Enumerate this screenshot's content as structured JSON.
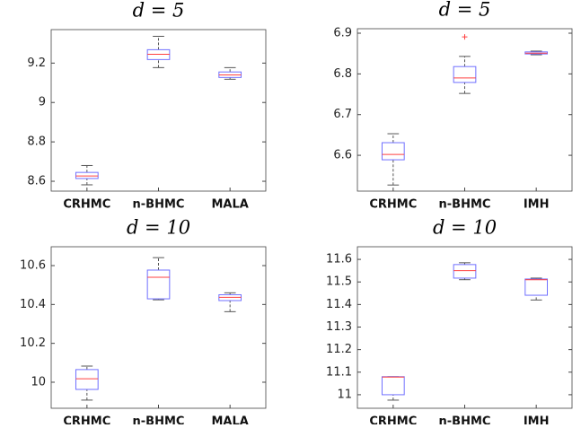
{
  "chart_data": [
    {
      "type": "box",
      "title": "d = 5",
      "categories": [
        "CRHMC",
        "n-BHMC",
        "MALA"
      ],
      "min": [
        8.582,
        9.177,
        9.118
      ],
      "q1": [
        8.614,
        9.218,
        9.127
      ],
      "median": [
        8.627,
        9.245,
        9.14
      ],
      "q3": [
        8.645,
        9.268,
        9.155
      ],
      "max": [
        8.68,
        9.336,
        9.177
      ],
      "outliers": [
        [],
        [],
        []
      ],
      "ylim": [
        8.55,
        9.37
      ],
      "yticks": [
        8.6,
        8.8,
        9,
        9.2
      ],
      "box_color": "#7070ff",
      "median_color": "#ff4040",
      "whisker_color": "#555555"
    },
    {
      "type": "box",
      "title": "d = 5",
      "categories": [
        "CRHMC",
        "n-BHMC",
        "IMH"
      ],
      "min": [
        6.527,
        6.752,
        6.847
      ],
      "q1": [
        6.589,
        6.779,
        6.849
      ],
      "median": [
        6.602,
        6.79,
        6.851
      ],
      "q3": [
        6.631,
        6.818,
        6.854
      ],
      "max": [
        6.653,
        6.843,
        6.856
      ],
      "outliers": [
        [],
        [
          6.891
        ],
        []
      ],
      "ylim": [
        6.512,
        6.911
      ],
      "yticks": [
        6.6,
        6.7,
        6.8,
        6.9
      ],
      "box_color": "#7070ff",
      "median_color": "#ff4040",
      "whisker_color": "#555555"
    },
    {
      "type": "box",
      "title": "d = 10",
      "categories": [
        "CRHMC",
        "n-BHMC",
        "MALA"
      ],
      "min": [
        9.908,
        10.424,
        10.363
      ],
      "q1": [
        9.963,
        10.429,
        10.42
      ],
      "median": [
        10.018,
        10.54,
        10.437
      ],
      "q3": [
        10.065,
        10.577,
        10.45
      ],
      "max": [
        10.083,
        10.641,
        10.46
      ],
      "outliers": [
        [],
        [],
        []
      ],
      "ylim": [
        9.866,
        10.697
      ],
      "yticks": [
        10,
        10.2,
        10.4,
        10.6
      ],
      "box_color": "#7070ff",
      "median_color": "#ff4040",
      "whisker_color": "#555555"
    },
    {
      "type": "box",
      "title": "d = 10",
      "categories": [
        "CRHMC",
        "n-BHMC",
        "IMH"
      ],
      "min": [
        10.976,
        11.51,
        11.42
      ],
      "q1": [
        11.0,
        11.517,
        11.441
      ],
      "median": [
        11.078,
        11.55,
        11.51
      ],
      "q3": [
        11.08,
        11.577,
        11.513
      ],
      "max": [
        11.08,
        11.585,
        11.517
      ],
      "outliers": [
        [],
        [],
        []
      ],
      "ylim": [
        10.94,
        11.656
      ],
      "yticks": [
        11,
        11.1,
        11.2,
        11.3,
        11.4,
        11.5,
        11.6
      ],
      "box_color": "#7070ff",
      "median_color": "#ff4040",
      "whisker_color": "#555555"
    }
  ]
}
